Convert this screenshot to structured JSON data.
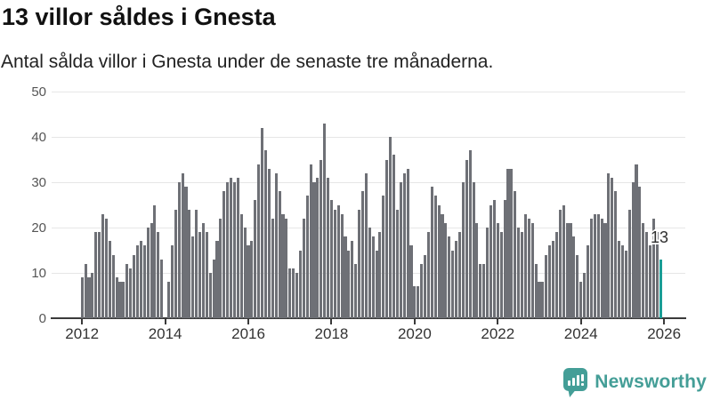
{
  "header": {
    "title": "13 villor såldes i Gnesta",
    "subtitle": "Antal sålda villor i Gnesta under de senaste tre månaderna."
  },
  "chart_data": {
    "type": "bar",
    "title": "13 villor såldes i Gnesta",
    "subtitle": "Antal sålda villor i Gnesta under de senaste tre månaderna.",
    "frequency": "monthly",
    "x_start": "2012-01",
    "x_end": "2025-12",
    "values": [
      9,
      12,
      9,
      10,
      19,
      19,
      23,
      22,
      17,
      14,
      9,
      8,
      8,
      12,
      11,
      14,
      16,
      17,
      16,
      20,
      21,
      25,
      19,
      13,
      0,
      8,
      16,
      24,
      30,
      32,
      29,
      24,
      18,
      24,
      19,
      21,
      19,
      10,
      13,
      17,
      22,
      28,
      30,
      31,
      30,
      31,
      23,
      20,
      16,
      17,
      26,
      34,
      42,
      37,
      33,
      22,
      32,
      28,
      23,
      22,
      11,
      11,
      10,
      15,
      22,
      27,
      34,
      30,
      31,
      35,
      43,
      31,
      26,
      24,
      25,
      23,
      18,
      15,
      17,
      12,
      24,
      28,
      32,
      20,
      18,
      15,
      19,
      27,
      35,
      40,
      36,
      24,
      30,
      32,
      33,
      16,
      7,
      7,
      12,
      14,
      19,
      29,
      27,
      25,
      23,
      21,
      18,
      15,
      17,
      19,
      30,
      35,
      37,
      30,
      21,
      12,
      12,
      20,
      25,
      26,
      21,
      19,
      26,
      33,
      33,
      28,
      20,
      19,
      23,
      22,
      21,
      12,
      8,
      8,
      14,
      16,
      17,
      19,
      24,
      25,
      21,
      21,
      18,
      14,
      8,
      10,
      16,
      22,
      23,
      23,
      22,
      21,
      32,
      31,
      28,
      17,
      16,
      15,
      24,
      30,
      34,
      29,
      21,
      19,
      16,
      22,
      19,
      13
    ],
    "highlight": {
      "index": 167,
      "value": 13,
      "label": "13"
    },
    "ylim": [
      0,
      50
    ],
    "yticks": [
      0,
      10,
      20,
      30,
      40,
      50
    ],
    "xticks": [
      2012,
      2014,
      2016,
      2018,
      2020,
      2022,
      2024,
      2026
    ],
    "grid": true,
    "legend": "none",
    "colors": {
      "bar": "#6e7076",
      "highlight": "#1a9e96",
      "grid": "#e6e6e6",
      "axis": "#3b3b3b"
    }
  },
  "footer": {
    "brand": "Newsworthy",
    "brand_color": "#449e97"
  }
}
